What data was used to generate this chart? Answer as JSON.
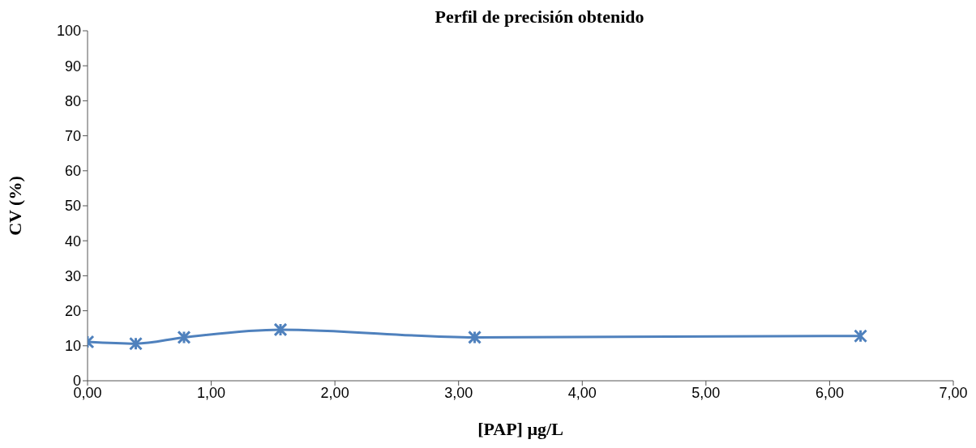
{
  "chart_data": {
    "type": "line",
    "title": "Perfil de precisión obtenido",
    "xlabel": "[PAP]  µg/L",
    "ylabel": "CV (%)",
    "x": [
      0.0,
      0.39,
      0.78,
      1.56,
      3.13,
      6.25
    ],
    "series": [
      {
        "color": "#4f81bd",
        "values": [
          11.1,
          10.6,
          12.4,
          14.6,
          12.4,
          12.8
        ]
      }
    ],
    "xlim": [
      0,
      7
    ],
    "xticks": [
      {
        "value": 0,
        "label": "0,00"
      },
      {
        "value": 1,
        "label": "1,00"
      },
      {
        "value": 2,
        "label": "2,00"
      },
      {
        "value": 3,
        "label": "3,00"
      },
      {
        "value": 4,
        "label": "4,00"
      },
      {
        "value": 5,
        "label": "5,00"
      },
      {
        "value": 6,
        "label": "6,00"
      },
      {
        "value": 7,
        "label": "7,00"
      }
    ],
    "ylim": [
      0,
      100
    ],
    "yticks": [
      0,
      10,
      20,
      30,
      40,
      50,
      60,
      70,
      80,
      90,
      100
    ],
    "grid": false,
    "marker": "cross",
    "line_style": "solid"
  }
}
